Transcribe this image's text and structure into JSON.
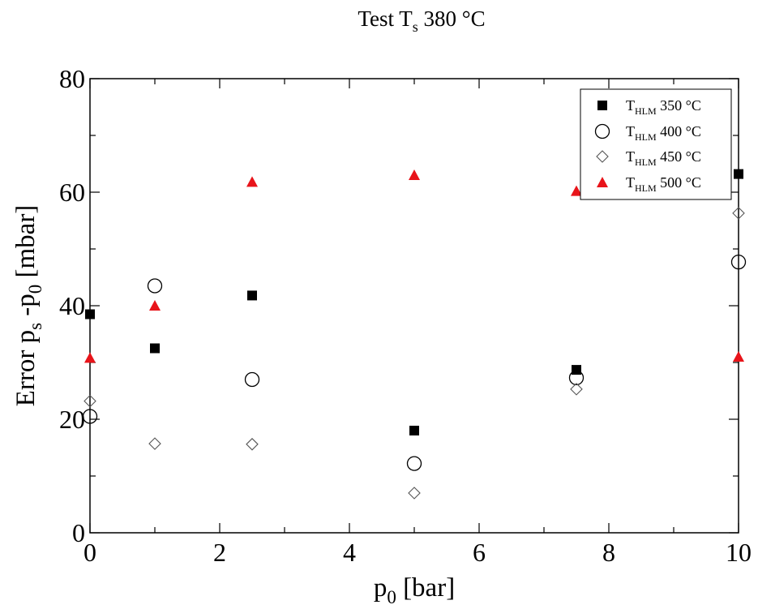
{
  "chart_data": {
    "type": "scatter",
    "title_main": "Test T",
    "title_sub": "s",
    "title_rest": " 380 °C",
    "xlabel_main": "p",
    "xlabel_sub": "0",
    "xlabel_rest": " [bar]",
    "ylabel_a": "Error p",
    "ylabel_sub1": "s",
    "ylabel_b": " -p",
    "ylabel_sub2": "0",
    "ylabel_c": " [mbar]",
    "xlim": [
      0,
      10
    ],
    "ylim": [
      0,
      80
    ],
    "x_ticks": [
      "0",
      "2",
      "4",
      "6",
      "8",
      "10"
    ],
    "y_ticks": [
      "0",
      "20",
      "40",
      "60",
      "80"
    ],
    "legend_position": "top-right",
    "series": [
      {
        "name_main": "T",
        "name_sub": "HLM",
        "name_rest": " 350 °C",
        "marker": "square-filled",
        "color": "#000000",
        "x": [
          0,
          1,
          2.5,
          5,
          7.5,
          10
        ],
        "y": [
          38.5,
          32.5,
          41.8,
          18,
          28.7,
          63.2
        ]
      },
      {
        "name_main": "T",
        "name_sub": "HLM",
        "name_rest": " 400 °C",
        "marker": "circle-open",
        "color": "#000000",
        "x": [
          0,
          1,
          2.5,
          5,
          7.5,
          10
        ],
        "y": [
          20.5,
          43.5,
          27,
          12.2,
          27.3,
          47.7
        ]
      },
      {
        "name_main": "T",
        "name_sub": "HLM",
        "name_rest": " 450 °C",
        "marker": "diamond-open",
        "color": "#555555",
        "x": [
          0,
          1,
          2.5,
          5,
          7.5,
          10
        ],
        "y": [
          23.2,
          15.7,
          15.6,
          7,
          25.3,
          56.3
        ]
      },
      {
        "name_main": "T",
        "name_sub": "HLM",
        "name_rest": " 500 °C",
        "marker": "triangle-filled",
        "color": "#e8141a",
        "x": [
          0,
          1,
          2.5,
          5,
          7.5,
          10
        ],
        "y": [
          30.8,
          40,
          61.8,
          63,
          60.2,
          31
        ]
      }
    ]
  }
}
